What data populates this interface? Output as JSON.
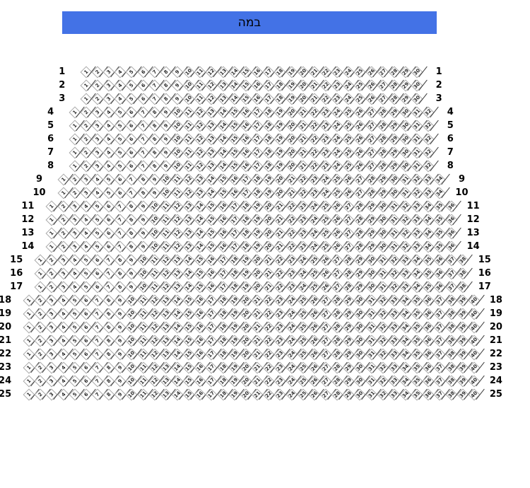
{
  "stage": {
    "label": "במה"
  },
  "colors": {
    "stage_bg": "#4372e6",
    "stage_text": "#000000",
    "seat_fill": "#ffffff",
    "seat_border": "#a8a8a8",
    "seat_number_text": "#2b2b2b",
    "separator": "#3a3a3a",
    "row_label_text": "#000000",
    "background": "#ffffff"
  },
  "seating": {
    "seat_numbering_direction": "left-to-right",
    "row_label_sides": [
      "left",
      "right"
    ],
    "rows": [
      {
        "number": "1",
        "seat_count": 30,
        "first_seat": 1,
        "last_seat": 30
      },
      {
        "number": "2",
        "seat_count": 30,
        "first_seat": 1,
        "last_seat": 30
      },
      {
        "number": "3",
        "seat_count": 30,
        "first_seat": 1,
        "last_seat": 30
      },
      {
        "number": "4",
        "seat_count": 32,
        "first_seat": 1,
        "last_seat": 32
      },
      {
        "number": "5",
        "seat_count": 32,
        "first_seat": 1,
        "last_seat": 32
      },
      {
        "number": "6",
        "seat_count": 32,
        "first_seat": 1,
        "last_seat": 32
      },
      {
        "number": "7",
        "seat_count": 32,
        "first_seat": 1,
        "last_seat": 32
      },
      {
        "number": "8",
        "seat_count": 32,
        "first_seat": 1,
        "last_seat": 32
      },
      {
        "number": "9",
        "seat_count": 34,
        "first_seat": 1,
        "last_seat": 34
      },
      {
        "number": "10",
        "seat_count": 34,
        "first_seat": 1,
        "last_seat": 34
      },
      {
        "number": "11",
        "seat_count": 36,
        "first_seat": 1,
        "last_seat": 36
      },
      {
        "number": "12",
        "seat_count": 36,
        "first_seat": 1,
        "last_seat": 36
      },
      {
        "number": "13",
        "seat_count": 36,
        "first_seat": 1,
        "last_seat": 36
      },
      {
        "number": "14",
        "seat_count": 36,
        "first_seat": 1,
        "last_seat": 36
      },
      {
        "number": "15",
        "seat_count": 38,
        "first_seat": 1,
        "last_seat": 38
      },
      {
        "number": "16",
        "seat_count": 38,
        "first_seat": 1,
        "last_seat": 38
      },
      {
        "number": "17",
        "seat_count": 38,
        "first_seat": 1,
        "last_seat": 38
      },
      {
        "number": "18",
        "seat_count": 40,
        "first_seat": 1,
        "last_seat": 40
      },
      {
        "number": "19",
        "seat_count": 40,
        "first_seat": 1,
        "last_seat": 40
      },
      {
        "number": "20",
        "seat_count": 40,
        "first_seat": 1,
        "last_seat": 40
      },
      {
        "number": "21",
        "seat_count": 40,
        "first_seat": 1,
        "last_seat": 40
      },
      {
        "number": "22",
        "seat_count": 40,
        "first_seat": 1,
        "last_seat": 40
      },
      {
        "number": "23",
        "seat_count": 40,
        "first_seat": 1,
        "last_seat": 40
      },
      {
        "number": "24",
        "seat_count": 40,
        "first_seat": 1,
        "last_seat": 40
      },
      {
        "number": "25",
        "seat_count": 40,
        "first_seat": 1,
        "last_seat": 40
      }
    ]
  }
}
